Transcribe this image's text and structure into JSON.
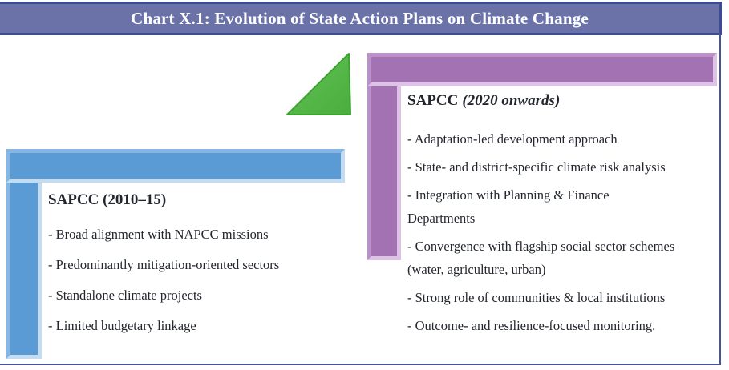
{
  "header": {
    "title": "Chart X.1: Evolution of State Action Plans on Climate Change"
  },
  "left_panel": {
    "title": "SAPCC (2010–15)",
    "items": [
      [
        "- Broad alignment with NAPCC missions"
      ],
      [
        "- Predominantly mitigation-oriented sectors"
      ],
      [
        "- Standalone climate projects"
      ],
      [
        "- Limited budgetary linkage"
      ]
    ]
  },
  "right_panel": {
    "title_main": "SAPCC",
    "title_italic": "(2020 onwards)",
    "items": [
      [
        "- Adaptation-led development approach"
      ],
      [
        "- State- and district-specific climate risk analysis"
      ],
      [
        "- Integration with Planning & Finance",
        "Departments"
      ],
      [
        "- Convergence with flagship social sector schemes",
        "(water, agriculture, urban)"
      ],
      [
        "- Strong role of communities & local institutions"
      ],
      [
        "- Outcome- and resilience-focused monitoring."
      ]
    ]
  },
  "icons": {
    "growth_triangle": "green-upward-triangle"
  },
  "colors": {
    "header_bg": "#6a72a8",
    "header_border": "#3c4c94",
    "page_border": "#44549c",
    "blue": "#5b9bd5",
    "purple": "#a272b2",
    "green": "#57b94a",
    "green_light": "#7ecb66",
    "green_border": "#3da232",
    "text": "#23262e"
  }
}
